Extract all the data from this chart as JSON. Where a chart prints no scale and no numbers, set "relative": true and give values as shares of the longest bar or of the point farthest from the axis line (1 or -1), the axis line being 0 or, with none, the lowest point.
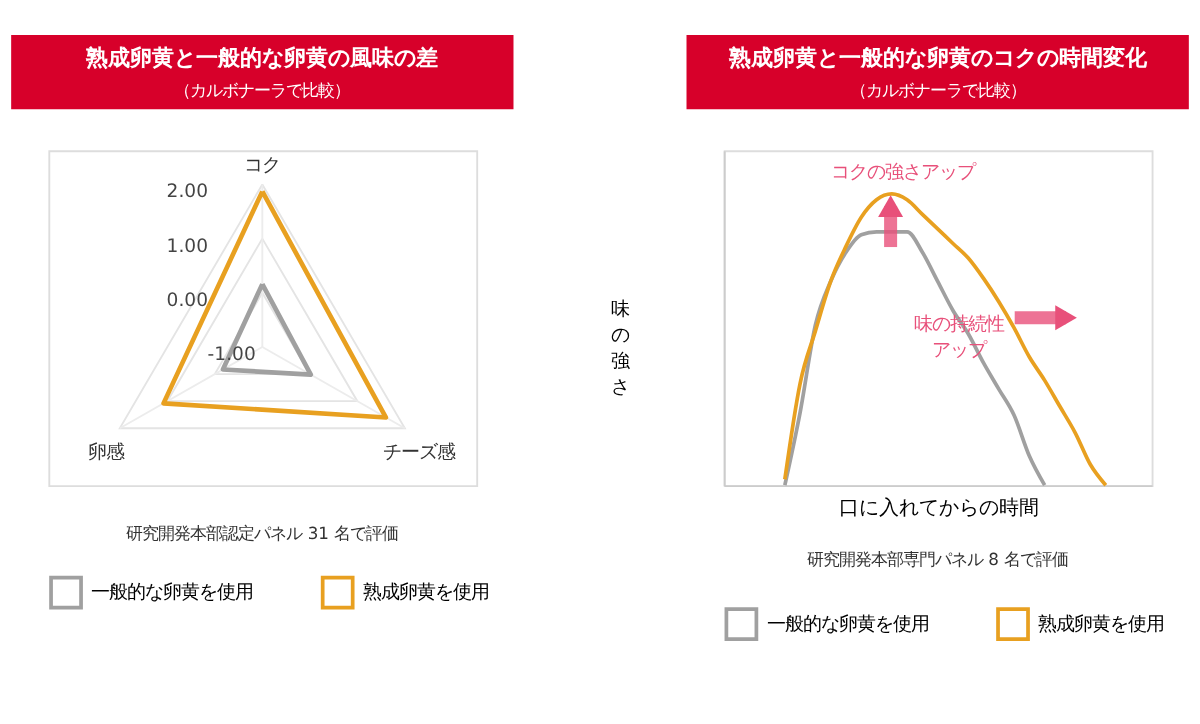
{
  "chart_data": [
    {
      "type": "radar",
      "title": "熟成卵黄と一般的な卵黄の風味の差",
      "subtitle": "（カルボナーラで比較）",
      "categories": [
        "コク",
        "チーズ感",
        "卵感"
      ],
      "ylim": [
        -1,
        2
      ],
      "yticks": [
        {
          "value": -1,
          "label": "-1.00"
        },
        {
          "value": 0,
          "label": "0.00"
        },
        {
          "value": 1,
          "label": "1.00"
        },
        {
          "value": 2,
          "label": "2.00"
        }
      ],
      "grid": true,
      "legend": "bottom",
      "annotations": [
        "研究開発本部認定パネル 31 名で評価"
      ],
      "series": [
        {
          "name": "一般的な卵黄を使用",
          "color": "#a0a0a0",
          "values": [
            0.16,
            0.02,
            -0.17
          ]
        },
        {
          "name": "熟成卵黄を使用",
          "color": "#e8a020",
          "values": [
            1.87,
            1.6,
            1.08
          ]
        }
      ]
    },
    {
      "type": "line",
      "relative": true,
      "title": "熟成卵黄と一般的な卵黄のコクの時間変化",
      "subtitle": "（カルボナーラで比較）",
      "xlabel": "口に入れてからの時間",
      "ylabel": "味の強さ",
      "legend": "bottom",
      "tick_labels": false,
      "annotations": [
        "コクの強さアップ",
        "味の持続性アップ",
        "研究開発本部専門パネル 8 名で評価"
      ],
      "categories": [
        null,
        null,
        null,
        null,
        null,
        null,
        null,
        null,
        null,
        null,
        null,
        null,
        null,
        null,
        null,
        null,
        null,
        null,
        null,
        null,
        null,
        null,
        null,
        null,
        null,
        null,
        null,
        null,
        null
      ],
      "series": [
        {
          "name": "一般的な卵黄を使用",
          "color": "#a0a0a0",
          "values": [
            null,
            null,
            null,
            null,
            0,
            0.25,
            0.55,
            0.7,
            0.8,
            0.86,
            0.87,
            0.87,
            0.87,
            0.8,
            0.7,
            0.6,
            0.52,
            0.42,
            0.33,
            0.24,
            0.1,
            0,
            null,
            null,
            null,
            null,
            null,
            null,
            null
          ]
        },
        {
          "name": "熟成卵黄を使用",
          "color": "#e8a020",
          "values": [
            null,
            null,
            null,
            null,
            0.02,
            0.35,
            0.53,
            0.7,
            0.82,
            0.92,
            0.98,
            1.0,
            0.98,
            0.93,
            0.88,
            0.83,
            0.78,
            0.71,
            0.63,
            0.54,
            0.44,
            0.36,
            0.27,
            0.18,
            0.07,
            0,
            null,
            null,
            null
          ]
        }
      ]
    }
  ]
}
